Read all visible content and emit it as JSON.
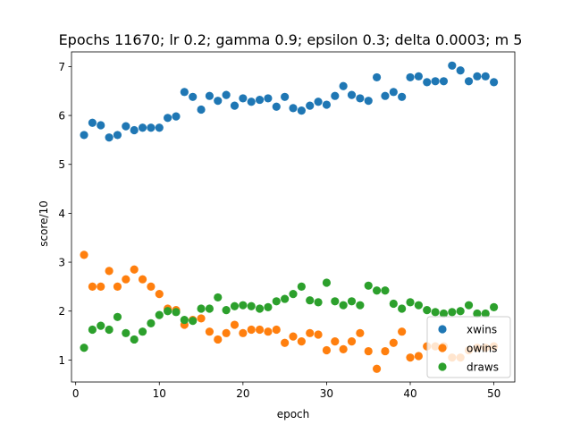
{
  "chart_data": {
    "type": "scatter",
    "title": "Epochs 11670; lr 0.2; gamma 0.9; epsilon 0.3; delta 0.0003; m 5",
    "xlabel": "epoch",
    "ylabel": "score/10",
    "xlim": [
      -0.5,
      52.5
    ],
    "ylim": [
      0.55,
      7.3
    ],
    "xticks": [
      0,
      10,
      20,
      30,
      40,
      50
    ],
    "yticks": [
      1,
      2,
      3,
      4,
      5,
      6,
      7
    ],
    "grid": false,
    "legend_position": "lower right",
    "series": [
      {
        "name": "xwins",
        "color": "#1f77b4",
        "x": [
          1,
          2,
          3,
          4,
          5,
          6,
          7,
          8,
          9,
          10,
          11,
          12,
          13,
          14,
          15,
          16,
          17,
          18,
          19,
          20,
          21,
          22,
          23,
          24,
          25,
          26,
          27,
          28,
          29,
          30,
          31,
          32,
          33,
          34,
          35,
          36,
          37,
          38,
          39,
          40,
          41,
          42,
          43,
          44,
          45,
          46,
          47,
          48,
          49,
          50
        ],
        "y": [
          5.6,
          5.85,
          5.8,
          5.55,
          5.6,
          5.78,
          5.7,
          5.75,
          5.75,
          5.75,
          5.95,
          5.98,
          6.48,
          6.38,
          6.12,
          6.4,
          6.3,
          6.42,
          6.2,
          6.35,
          6.28,
          6.32,
          6.35,
          6.18,
          6.38,
          6.15,
          6.1,
          6.2,
          6.28,
          6.22,
          6.4,
          6.6,
          6.42,
          6.35,
          6.3,
          6.78,
          6.4,
          6.48,
          6.38,
          6.78,
          6.8,
          6.68,
          6.7,
          6.7,
          7.02,
          6.92,
          6.7,
          6.8,
          6.8,
          6.68
        ]
      },
      {
        "name": "owins",
        "color": "#ff7f0e",
        "x": [
          1,
          2,
          3,
          4,
          5,
          6,
          7,
          8,
          9,
          10,
          11,
          12,
          13,
          14,
          15,
          16,
          17,
          18,
          19,
          20,
          21,
          22,
          23,
          24,
          25,
          26,
          27,
          28,
          29,
          30,
          31,
          32,
          33,
          34,
          35,
          36,
          37,
          38,
          39,
          40,
          41,
          42,
          43,
          44,
          45,
          46,
          47,
          48,
          49,
          50
        ],
        "y": [
          3.15,
          2.5,
          2.5,
          2.82,
          2.5,
          2.65,
          2.85,
          2.65,
          2.5,
          2.35,
          2.05,
          2.02,
          1.72,
          1.82,
          1.85,
          1.58,
          1.42,
          1.55,
          1.72,
          1.55,
          1.62,
          1.62,
          1.58,
          1.62,
          1.35,
          1.48,
          1.38,
          1.55,
          1.52,
          1.2,
          1.38,
          1.22,
          1.38,
          1.55,
          1.18,
          0.82,
          1.18,
          1.35,
          1.58,
          1.05,
          1.08,
          1.28,
          1.28,
          1.28,
          1.05,
          1.05,
          1.2,
          1.25,
          1.25,
          1.28
        ]
      },
      {
        "name": "draws",
        "color": "#2ca02c",
        "x": [
          1,
          2,
          3,
          4,
          5,
          6,
          7,
          8,
          9,
          10,
          11,
          12,
          13,
          14,
          15,
          16,
          17,
          18,
          19,
          20,
          21,
          22,
          23,
          24,
          25,
          26,
          27,
          28,
          29,
          30,
          31,
          32,
          33,
          34,
          35,
          36,
          37,
          38,
          39,
          40,
          41,
          42,
          43,
          44,
          45,
          46,
          47,
          48,
          49,
          50
        ],
        "y": [
          1.25,
          1.62,
          1.7,
          1.62,
          1.88,
          1.55,
          1.42,
          1.58,
          1.75,
          1.92,
          2.0,
          1.98,
          1.82,
          1.8,
          2.05,
          2.05,
          2.28,
          2.02,
          2.1,
          2.12,
          2.1,
          2.05,
          2.08,
          2.2,
          2.25,
          2.35,
          2.5,
          2.22,
          2.18,
          2.58,
          2.2,
          2.12,
          2.2,
          2.12,
          2.52,
          2.42,
          2.42,
          2.15,
          2.05,
          2.18,
          2.12,
          2.02,
          1.98,
          1.95,
          1.98,
          2.0,
          2.12,
          1.95,
          1.95,
          2.08
        ]
      }
    ]
  }
}
